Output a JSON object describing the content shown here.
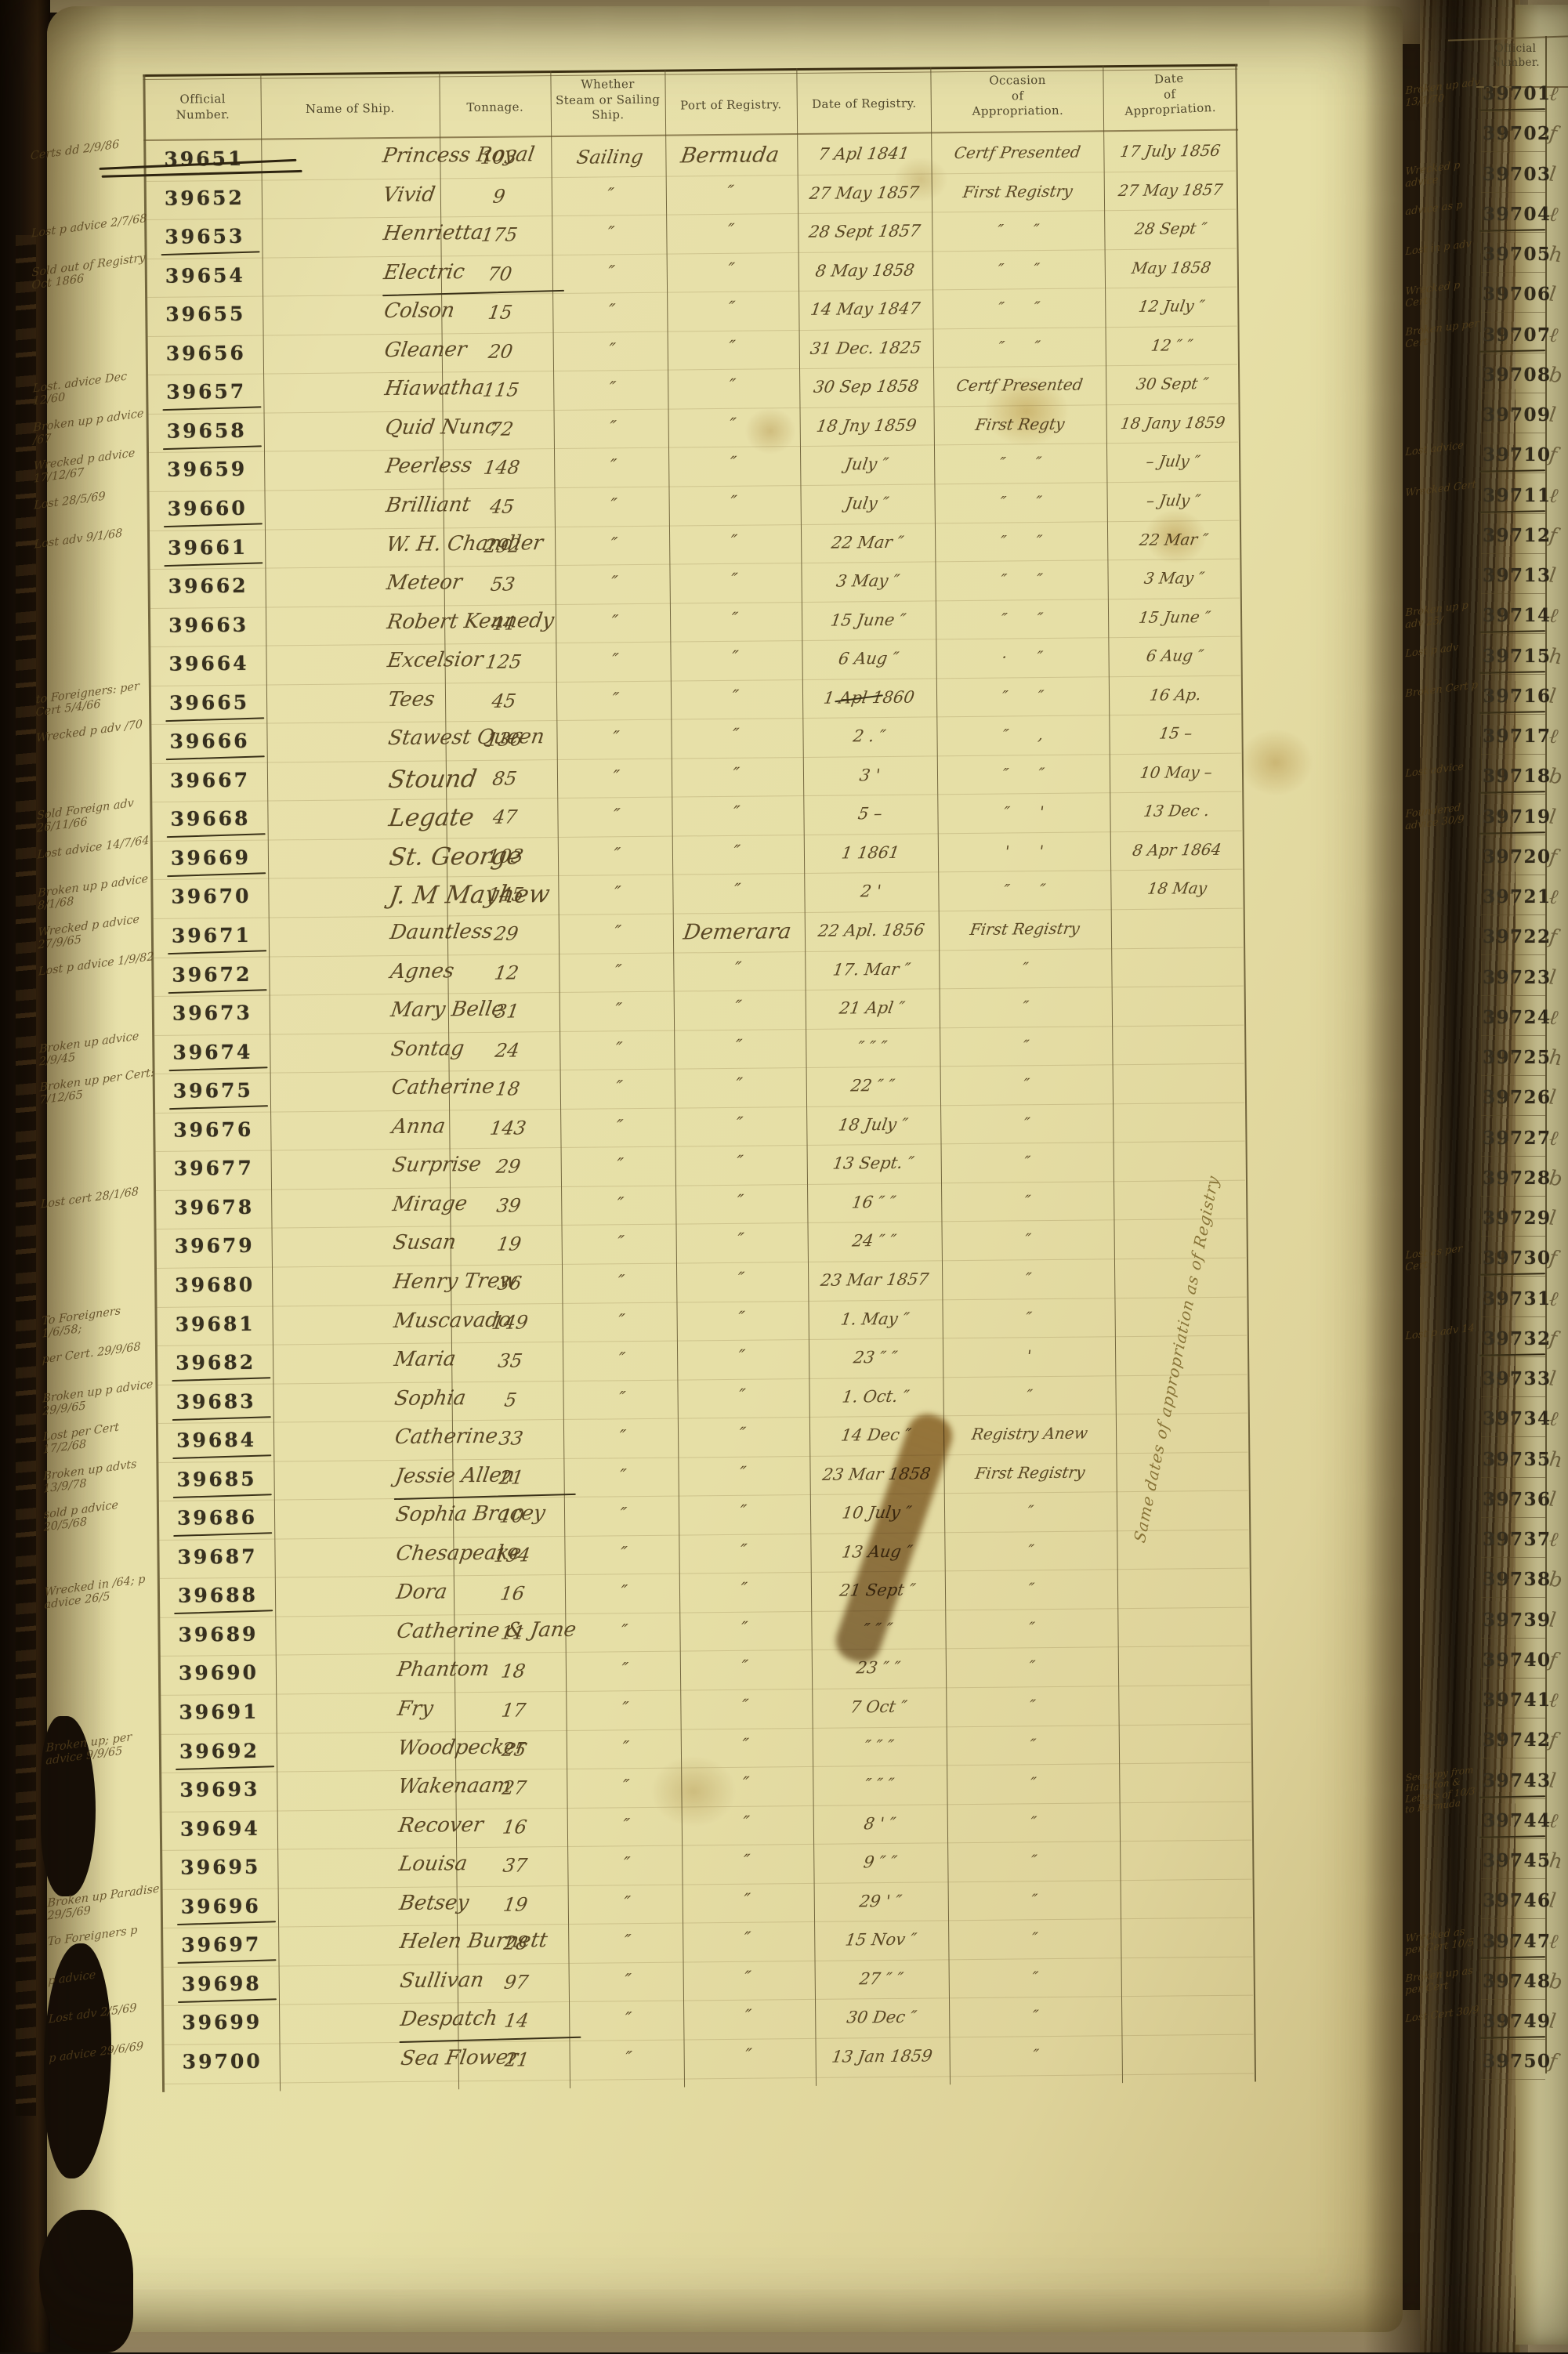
{
  "document_type": "Ship registry ledger spread",
  "left_page": {
    "headers": {
      "official_number": "Official\nNumber.",
      "name_of_ship": "Name of Ship.",
      "tonnage": "Tonnage.",
      "whether": "Whether\nSteam or Sailing\nShip.",
      "port": "Port of Registry.",
      "date_registry": "Date of Registry.",
      "occasion": "Occasion\nof\nAppropriation.",
      "date_appropriation": "Date\nof\nAppropriation."
    },
    "diagonal_note": "Same dates of appropriation as of Registry",
    "rows": [
      {
        "n": "39651",
        "name": "Princess Royal",
        "t": "103",
        "rig": "Sailing",
        "port": "Bermuda",
        "dr": "7 Apl 1841",
        "oc": "Certf Presented",
        "da": "17 July 1856",
        "m": "Certs dd 2/9/86",
        "f": [
          "strike"
        ]
      },
      {
        "n": "39652",
        "name": "Vivid",
        "t": "9",
        "rig": "″",
        "port": "″",
        "dr": "27 May 1857",
        "oc": "First Registry",
        "da": "27 May 1857",
        "m": "",
        "f": []
      },
      {
        "n": "39653",
        "name": "Henrietta",
        "t": "175",
        "rig": "″",
        "port": "″",
        "dr": "28 Sept 1857",
        "oc": "″      ″",
        "da": "28 Sept ″",
        "m": "Lost p advice 2/7/68",
        "f": [
          "u"
        ]
      },
      {
        "n": "39654",
        "name": "Electric",
        "t": "70",
        "rig": "″",
        "port": "″",
        "dr": "8 May 1858",
        "oc": "″      ″",
        "da": "May 1858",
        "m": "Sold out of Registry Oct 1866",
        "f": [
          "nu"
        ]
      },
      {
        "n": "39655",
        "name": "Colson",
        "t": "15",
        "rig": "″",
        "port": "″",
        "dr": "14 May 1847",
        "oc": "″      ″",
        "da": "12 July ″",
        "m": "",
        "f": []
      },
      {
        "n": "39656",
        "name": "Gleaner",
        "t": "20",
        "rig": "″",
        "port": "″",
        "dr": "31 Dec. 1825",
        "oc": "″      ″",
        "da": "12 ″  ″",
        "m": "",
        "f": []
      },
      {
        "n": "39657",
        "name": "Hiawatha",
        "t": "115",
        "rig": "″",
        "port": "″",
        "dr": "30 Sep 1858",
        "oc": "Certf Presented",
        "da": "30 Sept ″",
        "m": "Lost. advice Dec 12/60",
        "f": [
          "u"
        ]
      },
      {
        "n": "39658",
        "name": "Quid Nunc",
        "t": "72",
        "rig": "″",
        "port": "″",
        "dr": "18 Jny 1859",
        "oc": "First Regty",
        "da": "18 Jany 1859",
        "m": "Broken up p advice /67",
        "f": [
          "u"
        ]
      },
      {
        "n": "39659",
        "name": "Peerless",
        "t": "148",
        "rig": "″",
        "port": "″",
        "dr": "July ″",
        "oc": "″      ″",
        "da": "– July ″",
        "m": "Wrecked p advice 17/12/67",
        "f": []
      },
      {
        "n": "39660",
        "name": "Brilliant",
        "t": "45",
        "rig": "″",
        "port": "″",
        "dr": "July ″",
        "oc": "″      ″",
        "da": "– July ″",
        "m": "Lost 28/5/69",
        "f": [
          "u"
        ]
      },
      {
        "n": "39661",
        "name": "W. H. Chandler",
        "t": "292",
        "rig": "″",
        "port": "″",
        "dr": "22 Mar ″",
        "oc": "″      ″",
        "da": "22 Mar ″",
        "m": "Lost adv 9/1/68",
        "f": [
          "u"
        ]
      },
      {
        "n": "39662",
        "name": "Meteor",
        "t": "53",
        "rig": "″",
        "port": "″",
        "dr": "3 May ″",
        "oc": "″      ″",
        "da": "3 May ″",
        "m": "",
        "f": []
      },
      {
        "n": "39663",
        "name": "Robert Kennedy",
        "t": "44",
        "rig": "″",
        "port": "″",
        "dr": "15 June ″",
        "oc": "″      ″",
        "da": "15 June ″",
        "m": "",
        "f": []
      },
      {
        "n": "39664",
        "name": "Excelsior",
        "t": "125",
        "rig": "″",
        "port": "″",
        "dr": "6 Aug ″",
        "oc": "·      ″",
        "da": "6 Aug ″",
        "m": "",
        "f": []
      },
      {
        "n": "39665",
        "name": "Tees",
        "t": "45",
        "rig": "″",
        "port": "″",
        "dr": "1 Apl 1860",
        "oc": "″      ″",
        "da": "16 Ap.",
        "m": "to Foreigners: per Cert 5/4/66",
        "f": [
          "u",
          "ds"
        ]
      },
      {
        "n": "39666",
        "name": "Stawest Queen",
        "t": "136",
        "rig": "″",
        "port": "″",
        "dr": "2 .  ″",
        "oc": "″      ,",
        "da": "15  –",
        "m": "Wrecked p adv /70",
        "f": [
          "u"
        ]
      },
      {
        "n": "39667",
        "name": "Stound",
        "t": "85",
        "rig": "″",
        "port": "″",
        "dr": "3  '",
        "oc": "″      ″",
        "da": "10 May –",
        "m": "",
        "f": []
      },
      {
        "n": "39668",
        "name": "Legate",
        "t": "47",
        "rig": "″",
        "port": "″",
        "dr": "5 –",
        "oc": "″      '",
        "da": "13 Dec .",
        "m": "Sold Foreign adv 26/11/66",
        "f": [
          "u"
        ]
      },
      {
        "n": "39669",
        "name": "St. George",
        "t": "103",
        "rig": "″",
        "port": "″",
        "dr": "1   1861",
        "oc": "'      '",
        "da": "8 Apr 1864",
        "m": "Lost advice 14/7/64",
        "f": [
          "u"
        ]
      },
      {
        "n": "39670",
        "name": "J. M Mayhew",
        "t": "145",
        "rig": "″",
        "port": "″",
        "dr": "2  '",
        "oc": "″      ″",
        "da": "18 May",
        "m": "Broken up p advice 8/1/68",
        "f": []
      },
      {
        "n": "39671",
        "name": "Dauntless",
        "t": "29",
        "rig": "″",
        "port": "Demerara",
        "dr": "22 Apl. 1856",
        "oc": "First Registry",
        "da": "",
        "m": "Wrecked p advice 27/9/65",
        "f": [
          "u"
        ]
      },
      {
        "n": "39672",
        "name": "Agnes",
        "t": "12",
        "rig": "″",
        "port": "″",
        "dr": "17. Mar ″",
        "oc": "″",
        "da": "",
        "m": "Lost p advice 1/9/82",
        "f": [
          "u"
        ]
      },
      {
        "n": "39673",
        "name": "Mary Belle",
        "t": "31",
        "rig": "″",
        "port": "″",
        "dr": "21 Apl ″",
        "oc": "″",
        "da": "",
        "m": "",
        "f": []
      },
      {
        "n": "39674",
        "name": "Sontag",
        "t": "24",
        "rig": "″",
        "port": "″",
        "dr": "″  ″  ″",
        "oc": "″",
        "da": "",
        "m": "Broken up advice 2/9/45",
        "f": [
          "u"
        ]
      },
      {
        "n": "39675",
        "name": "Catherine",
        "t": "18",
        "rig": "″",
        "port": "″",
        "dr": "22  ″  ″",
        "oc": "″",
        "da": "",
        "m": "Broken up per Cert: 7/12/65",
        "f": [
          "u"
        ]
      },
      {
        "n": "39676",
        "name": "Anna",
        "t": "143",
        "rig": "″",
        "port": "″",
        "dr": "18 July ″",
        "oc": "″",
        "da": "",
        "m": "",
        "f": []
      },
      {
        "n": "39677",
        "name": "Surprise",
        "t": "29",
        "rig": "″",
        "port": "″",
        "dr": "13 Sept. ″",
        "oc": "″",
        "da": "",
        "m": "",
        "f": []
      },
      {
        "n": "39678",
        "name": "Mirage",
        "t": "39",
        "rig": "″",
        "port": "″",
        "dr": "16  ″  ″",
        "oc": "″",
        "da": "",
        "m": "Lost cert 28/1/68",
        "f": []
      },
      {
        "n": "39679",
        "name": "Susan",
        "t": "19",
        "rig": "″",
        "port": "″",
        "dr": "24  ″  ″",
        "oc": "″",
        "da": "",
        "m": "",
        "f": []
      },
      {
        "n": "39680",
        "name": "Henry Trew",
        "t": "36",
        "rig": "″",
        "port": "″",
        "dr": "23 Mar 1857",
        "oc": "″",
        "da": "",
        "m": "",
        "f": []
      },
      {
        "n": "39681",
        "name": "Muscavado",
        "t": "149",
        "rig": "″",
        "port": "″",
        "dr": "1. May ″",
        "oc": "″",
        "da": "",
        "m": "To Foreigners 1/6/58;",
        "f": []
      },
      {
        "n": "39682",
        "name": "Maria",
        "t": "35",
        "rig": "″",
        "port": "″",
        "dr": "23  ″  ″",
        "oc": "'",
        "da": "",
        "m": "per Cert. 29/9/68",
        "f": [
          "u"
        ]
      },
      {
        "n": "39683",
        "name": "Sophia",
        "t": "5",
        "rig": "″",
        "port": "″",
        "dr": "1. Oct. ″",
        "oc": "″",
        "da": "",
        "m": "Broken up p advice 29/9/65",
        "f": [
          "u"
        ]
      },
      {
        "n": "39684",
        "name": "Catherine",
        "t": "33",
        "rig": "″",
        "port": "″",
        "dr": "14 Dec ″",
        "oc": "Registry Anew",
        "da": "",
        "m": "Lost per Cert 17/2/68",
        "f": [
          "u"
        ]
      },
      {
        "n": "39685",
        "name": "Jessie Allen",
        "t": "21",
        "rig": "″",
        "port": "″",
        "dr": "23 Mar 1858",
        "oc": "First Registry",
        "da": "",
        "m": "Broken up advts 13/9/78",
        "f": [
          "u",
          "nu"
        ]
      },
      {
        "n": "39686",
        "name": "Sophia Bracey",
        "t": "10",
        "rig": "″",
        "port": "″",
        "dr": "10 July ″",
        "oc": "″",
        "da": "",
        "m": "sold p advice 20/5/68",
        "f": [
          "u"
        ]
      },
      {
        "n": "39687",
        "name": "Chesapeake",
        "t": "194",
        "rig": "″",
        "port": "″",
        "dr": "13 Aug ″",
        "oc": "″",
        "da": "",
        "m": "",
        "f": []
      },
      {
        "n": "39688",
        "name": "Dora",
        "t": "16",
        "rig": "″",
        "port": "″",
        "dr": "21 Sept ″",
        "oc": "″",
        "da": "",
        "m": "Wrecked in /64; p advice 26/5",
        "f": [
          "u"
        ]
      },
      {
        "n": "39689",
        "name": "Catherine & Jane",
        "t": "11",
        "rig": "″",
        "port": "″",
        "dr": "″  ″  ″",
        "oc": "″",
        "da": "",
        "m": "",
        "f": []
      },
      {
        "n": "39690",
        "name": "Phantom",
        "t": "18",
        "rig": "″",
        "port": "″",
        "dr": "23  ″  ″",
        "oc": "″",
        "da": "",
        "m": "",
        "f": []
      },
      {
        "n": "39691",
        "name": "Fry",
        "t": "17",
        "rig": "″",
        "port": "″",
        "dr": "7 Oct ″",
        "oc": "″",
        "da": "",
        "m": "",
        "f": []
      },
      {
        "n": "39692",
        "name": "Woodpecker",
        "t": "25",
        "rig": "″",
        "port": "″",
        "dr": "″  ″  ″",
        "oc": "″",
        "da": "",
        "m": "Broken up; per advice 9/9/65",
        "f": [
          "u"
        ]
      },
      {
        "n": "39693",
        "name": "Wakenaam",
        "t": "27",
        "rig": "″",
        "port": "″",
        "dr": "″  ″  ″",
        "oc": "″",
        "da": "",
        "m": "",
        "f": []
      },
      {
        "n": "39694",
        "name": "Recover",
        "t": "16",
        "rig": "″",
        "port": "″",
        "dr": "8  '  ″",
        "oc": "″",
        "da": "",
        "m": "",
        "f": []
      },
      {
        "n": "39695",
        "name": "Louisa",
        "t": "37",
        "rig": "″",
        "port": "″",
        "dr": "9  ″  ″",
        "oc": "″",
        "da": "",
        "m": "",
        "f": []
      },
      {
        "n": "39696",
        "name": "Betsey",
        "t": "19",
        "rig": "″",
        "port": "″",
        "dr": "29  '  ″",
        "oc": "″",
        "da": "",
        "m": "Broken up Paradise 29/5/69",
        "f": [
          "u"
        ]
      },
      {
        "n": "39697",
        "name": "Helen Burnett",
        "t": "28",
        "rig": "″",
        "port": "″",
        "dr": "15 Nov ″",
        "oc": "″",
        "da": "",
        "m": "To Foreigners p",
        "f": [
          "u"
        ]
      },
      {
        "n": "39698",
        "name": "Sullivan",
        "t": "97",
        "rig": "″",
        "port": "″",
        "dr": "27  ″  ″",
        "oc": "″",
        "da": "",
        "m": "p advice",
        "f": [
          "u"
        ]
      },
      {
        "n": "39699",
        "name": "Despatch",
        "t": "14",
        "rig": "″",
        "port": "″",
        "dr": "30 Dec ″",
        "oc": "″",
        "da": "",
        "m": "Lost adv 2/5/69",
        "f": [
          "nu"
        ]
      },
      {
        "n": "39700",
        "name": "Sea Flower",
        "t": "21",
        "rig": "″",
        "port": "″",
        "dr": "13 Jan 1859",
        "oc": "″",
        "da": "",
        "m": "p advice 29/6/69",
        "f": []
      }
    ]
  },
  "right_page": {
    "header": "Official\nNumber.",
    "rows": [
      {
        "n": "39701",
        "m": "Broken up adv 13/1/70",
        "u": true
      },
      {
        "n": "39702",
        "m": "",
        "u": false
      },
      {
        "n": "39703",
        "m": "Wrecked p advice",
        "u": false
      },
      {
        "n": "39704",
        "m": "advice as p",
        "u": true
      },
      {
        "n": "39705",
        "m": "Lost in p adv",
        "u": false
      },
      {
        "n": "39706",
        "m": "Wrecked p Cert",
        "u": false
      },
      {
        "n": "39707",
        "m": "Broken up per Cert",
        "u": true
      },
      {
        "n": "39708",
        "m": "",
        "u": false
      },
      {
        "n": "39709",
        "m": "",
        "u": false
      },
      {
        "n": "39710",
        "m": "Lost advice",
        "u": true
      },
      {
        "n": "39711",
        "m": "Wrecked Cert",
        "u": true
      },
      {
        "n": "39712",
        "m": "",
        "u": false
      },
      {
        "n": "39713",
        "m": "",
        "u": false
      },
      {
        "n": "39714",
        "m": "Broken up p adv 25/",
        "u": true
      },
      {
        "n": "39715",
        "m": "Lost p adv",
        "u": true
      },
      {
        "n": "39716",
        "m": "Broken Cert p",
        "u": true
      },
      {
        "n": "39717",
        "m": "",
        "u": false
      },
      {
        "n": "39718",
        "m": "Lost advice",
        "u": true
      },
      {
        "n": "39719",
        "m": "Foundered advice 30/9",
        "u": true
      },
      {
        "n": "39720",
        "m": "",
        "u": false
      },
      {
        "n": "39721",
        "m": "",
        "u": false
      },
      {
        "n": "39722",
        "m": "",
        "u": false
      },
      {
        "n": "39723",
        "m": "",
        "u": false
      },
      {
        "n": "39724",
        "m": "",
        "u": false
      },
      {
        "n": "39725",
        "m": "",
        "u": false
      },
      {
        "n": "39726",
        "m": "",
        "u": false
      },
      {
        "n": "39727",
        "m": "",
        "u": false
      },
      {
        "n": "39728",
        "m": "",
        "u": false
      },
      {
        "n": "39729",
        "m": "",
        "u": false
      },
      {
        "n": "39730",
        "m": "Lost as per Cert",
        "u": true
      },
      {
        "n": "39731",
        "m": "",
        "u": false
      },
      {
        "n": "39732",
        "m": "Lost p adv 14",
        "u": true
      },
      {
        "n": "39733",
        "m": "",
        "u": false
      },
      {
        "n": "39734",
        "m": "",
        "u": false
      },
      {
        "n": "39735",
        "m": "",
        "u": false
      },
      {
        "n": "39736",
        "m": "",
        "u": false
      },
      {
        "n": "39737",
        "m": "",
        "u": false
      },
      {
        "n": "39738",
        "m": "",
        "u": false
      },
      {
        "n": "39739",
        "m": "",
        "u": false
      },
      {
        "n": "39740",
        "m": "",
        "u": false
      },
      {
        "n": "39741",
        "m": "",
        "u": false
      },
      {
        "n": "39742",
        "m": "",
        "u": false
      },
      {
        "n": "39743",
        "m": "See copy from Hamilton & Letters of 10/3 to Bermuda",
        "u": true
      },
      {
        "n": "39744",
        "m": "",
        "u": true
      },
      {
        "n": "39745",
        "m": "",
        "u": false
      },
      {
        "n": "39746",
        "m": "",
        "u": false
      },
      {
        "n": "39747",
        "m": "Wrecked as per Cert 10/5",
        "u": true
      },
      {
        "n": "39748",
        "m": "Broken up as per Cert",
        "u": false
      },
      {
        "n": "39749",
        "m": "Lost Cert 30/9",
        "u": true
      },
      {
        "n": "39750",
        "m": "",
        "u": false
      }
    ]
  }
}
